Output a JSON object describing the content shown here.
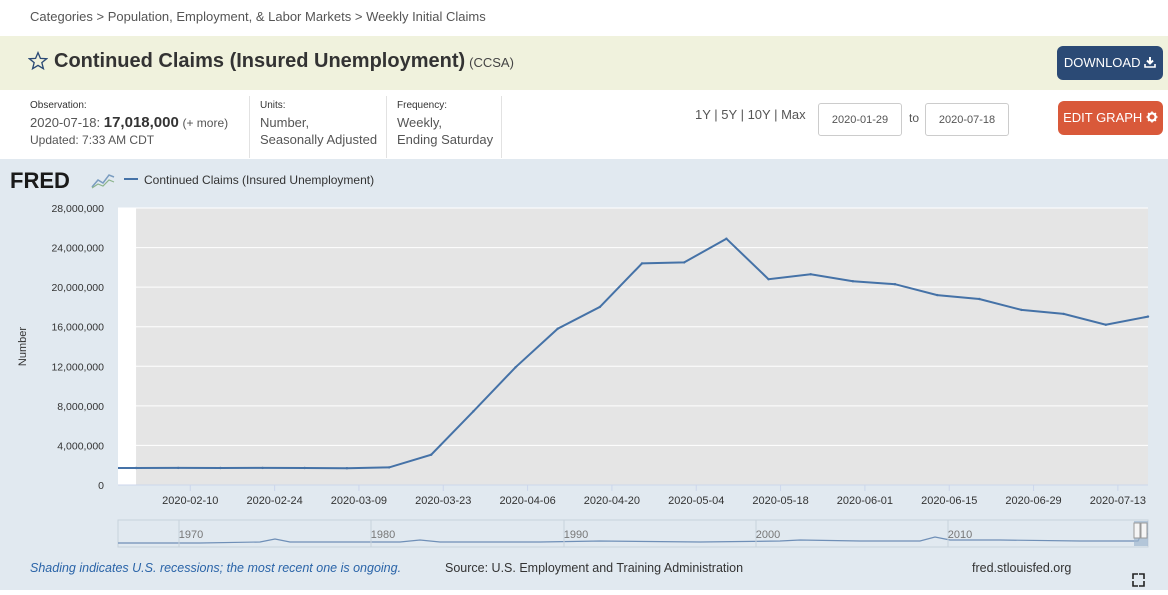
{
  "breadcrumb": {
    "items": [
      "Categories",
      "Population, Employment, & Labor Markets",
      "Weekly Initial Claims"
    ],
    "separator": ">"
  },
  "header": {
    "title": "Continued Claims (Insured Unemployment)",
    "series_id": "(CCSA)",
    "download_label": "DOWNLOAD"
  },
  "meta": {
    "observation_label": "Observation:",
    "observation_date": "2020-07-18:",
    "observation_value": "17,018,000",
    "more": "(+ more)",
    "updated": "Updated: 7:33 AM CDT",
    "units_label": "Units:",
    "units_line1": "Number,",
    "units_line2": "Seasonally Adjusted",
    "frequency_label": "Frequency:",
    "frequency_line1": "Weekly,",
    "frequency_line2": "Ending Saturday"
  },
  "controls": {
    "ranges": [
      "1Y",
      "5Y",
      "10Y",
      "Max"
    ],
    "start_date": "2020-01-29",
    "to": "to",
    "end_date": "2020-07-18",
    "edit_label": "EDIT GRAPH"
  },
  "chart_footer": {
    "shading_note": "Shading indicates U.S. recessions; the most recent one is ongoing.",
    "source": "Source: U.S. Employment and Training Administration",
    "site": "fred.stlouisfed.org"
  },
  "colors": {
    "line": "#4572a7",
    "plot_bg": "#e5e5e5",
    "chart_bg": "#e1e9f0",
    "download": "#2b4a75",
    "edit": "#d9593a"
  },
  "chart_data": {
    "type": "line",
    "logo": "FRED",
    "legend": [
      "Continued Claims (Insured Unemployment)"
    ],
    "ylabel": "Number",
    "ylim": [
      0,
      28000000
    ],
    "yticks": [
      0,
      4000000,
      8000000,
      12000000,
      16000000,
      20000000,
      24000000,
      28000000
    ],
    "ytick_labels": [
      "0",
      "4,000,000",
      "8,000,000",
      "12,000,000",
      "16,000,000",
      "20,000,000",
      "24,000,000",
      "28,000,000"
    ],
    "xlim": [
      "2020-01-29",
      "2020-07-18"
    ],
    "xtick_labels": [
      "2020-02-10",
      "2020-02-24",
      "2020-03-09",
      "2020-03-23",
      "2020-04-06",
      "2020-04-20",
      "2020-05-04",
      "2020-05-18",
      "2020-06-01",
      "2020-06-15",
      "2020-06-29",
      "2020-07-13"
    ],
    "recession_start": "2020-02-01",
    "series": [
      {
        "name": "Continued Claims (Insured Unemployment)",
        "x": [
          "2020-02-01",
          "2020-02-08",
          "2020-02-15",
          "2020-02-22",
          "2020-02-29",
          "2020-03-07",
          "2020-03-14",
          "2020-03-21",
          "2020-03-28",
          "2020-04-04",
          "2020-04-11",
          "2020-04-18",
          "2020-04-25",
          "2020-05-02",
          "2020-05-09",
          "2020-05-16",
          "2020-05-23",
          "2020-05-30",
          "2020-06-06",
          "2020-06-13",
          "2020-06-20",
          "2020-06-27",
          "2020-07-04",
          "2020-07-11",
          "2020-07-18"
        ],
        "values": [
          1720000,
          1730000,
          1720000,
          1730000,
          1720000,
          1700000,
          1780000,
          3060000,
          7450000,
          11900000,
          15800000,
          18000000,
          22400000,
          22500000,
          24900000,
          20800000,
          21300000,
          20600000,
          20300000,
          19200000,
          18800000,
          17700000,
          17300000,
          16200000,
          17018000
        ]
      }
    ],
    "navigator_labels": [
      "1970",
      "1980",
      "1990",
      "2000",
      "2010"
    ]
  }
}
